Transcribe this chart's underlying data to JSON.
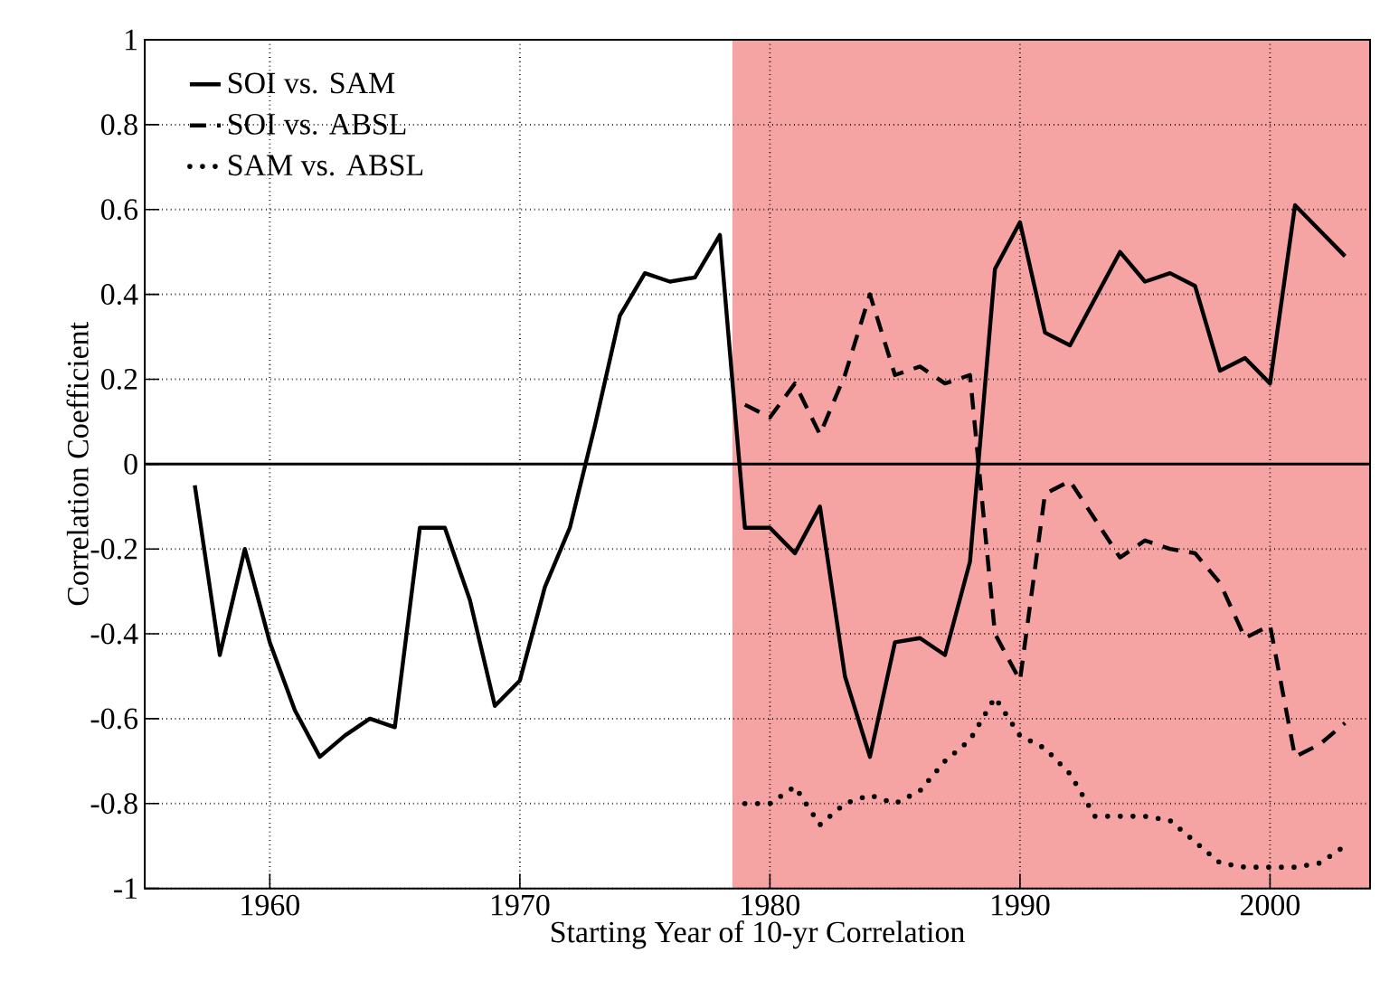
{
  "chart_data": {
    "type": "line",
    "xlabel": "Starting Year of 10-yr Correlation",
    "ylabel": "Correlation Coefficient",
    "xlim": [
      1955,
      2004
    ],
    "ylim": [
      -1,
      1
    ],
    "xticks": [
      1960,
      1970,
      1980,
      1990,
      2000
    ],
    "yticks": [
      -1,
      -0.8,
      -0.6,
      -0.4,
      -0.2,
      0,
      0.2,
      0.4,
      0.6,
      0.8,
      1
    ],
    "grid": true,
    "legend": "top left",
    "ref_lines": [
      {
        "axis": "y",
        "value": 0,
        "color": "#000000"
      }
    ],
    "bands": [
      {
        "axis": "x",
        "from": 1978.5,
        "to": 2004,
        "color": "#f5a3a3"
      }
    ],
    "series": [
      {
        "name": "SOI vs. SAM",
        "color": "#000000",
        "line_style": "solid",
        "x": [
          1957,
          1958,
          1959,
          1960,
          1961,
          1962,
          1963,
          1964,
          1965,
          1966,
          1967,
          1968,
          1969,
          1970,
          1971,
          1972,
          1973,
          1974,
          1975,
          1976,
          1977,
          1978,
          1979,
          1980,
          1981,
          1982,
          1983,
          1984,
          1985,
          1986,
          1987,
          1988,
          1989,
          1990,
          1991,
          1992,
          1993,
          1994,
          1995,
          1996,
          1997,
          1998,
          1999,
          2000,
          2001,
          2002,
          2003
        ],
        "values": [
          -0.05,
          -0.45,
          -0.2,
          -0.42,
          -0.58,
          -0.69,
          -0.64,
          -0.6,
          -0.62,
          -0.15,
          -0.15,
          -0.32,
          -0.57,
          -0.51,
          -0.29,
          -0.15,
          0.09,
          0.35,
          0.45,
          0.43,
          0.44,
          0.54,
          -0.15,
          -0.15,
          -0.21,
          -0.1,
          -0.5,
          -0.69,
          -0.42,
          -0.41,
          -0.45,
          -0.23,
          0.46,
          0.57,
          0.31,
          0.28,
          0.39,
          0.5,
          0.43,
          0.45,
          0.42,
          0.22,
          0.25,
          0.19,
          0.61,
          0.55,
          0.49
        ]
      },
      {
        "name": "SOI vs. ABSL",
        "color": "#000000",
        "line_style": "dashed",
        "x": [
          1979,
          1980,
          1981,
          1982,
          1983,
          1984,
          1985,
          1986,
          1987,
          1988,
          1989,
          1990,
          1991,
          1992,
          1993,
          1994,
          1995,
          1996,
          1997,
          1998,
          1999,
          2000,
          2001,
          2002,
          2003
        ],
        "values": [
          0.14,
          0.11,
          0.19,
          0.07,
          0.21,
          0.4,
          0.21,
          0.23,
          0.19,
          0.21,
          -0.4,
          -0.51,
          -0.07,
          -0.04,
          -0.13,
          -0.22,
          -0.18,
          -0.2,
          -0.21,
          -0.28,
          -0.41,
          -0.38,
          -0.69,
          -0.66,
          -0.61
        ]
      },
      {
        "name": "SAM vs. ABSL",
        "color": "#000000",
        "line_style": "dotted",
        "x": [
          1979,
          1980,
          1981,
          1982,
          1983,
          1984,
          1985,
          1986,
          1987,
          1988,
          1989,
          1990,
          1991,
          1992,
          1993,
          1994,
          1995,
          1996,
          1997,
          1998,
          1999,
          2000,
          2001,
          2002,
          2003
        ],
        "values": [
          -0.8,
          -0.8,
          -0.76,
          -0.85,
          -0.8,
          -0.78,
          -0.8,
          -0.77,
          -0.7,
          -0.65,
          -0.55,
          -0.64,
          -0.67,
          -0.73,
          -0.83,
          -0.83,
          -0.83,
          -0.84,
          -0.89,
          -0.94,
          -0.95,
          -0.95,
          -0.95,
          -0.94,
          -0.9
        ]
      }
    ]
  }
}
